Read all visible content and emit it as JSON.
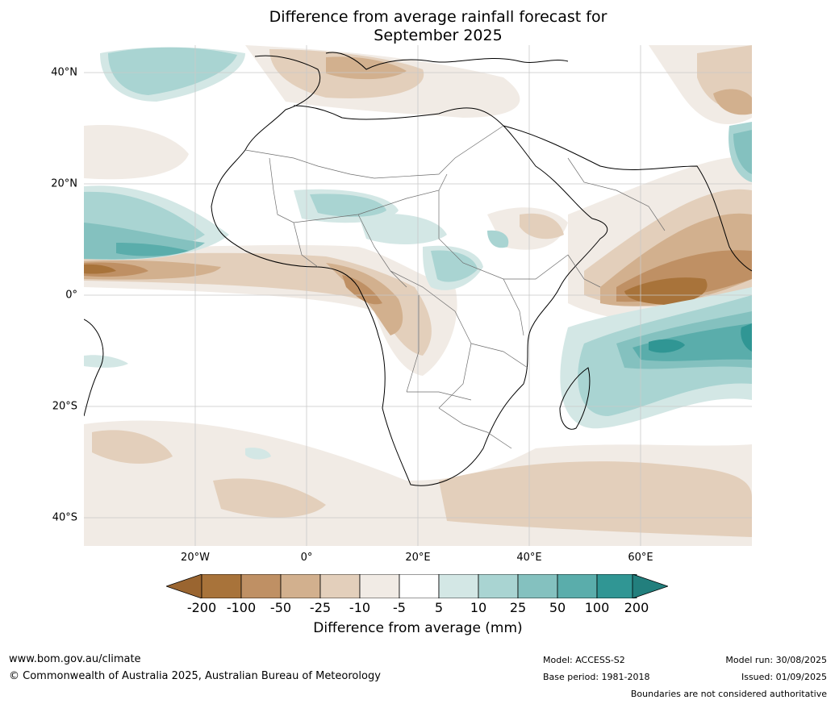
{
  "title": {
    "line1": "Difference from average rainfall forecast for",
    "line2": "September 2025"
  },
  "map": {
    "lat_labels": [
      "40°N",
      "20°N",
      "0°",
      "20°S",
      "40°S"
    ],
    "lon_labels": [
      "20°W",
      "0°",
      "20°E",
      "40°E",
      "60°E"
    ]
  },
  "legend": {
    "title": "Difference from average (mm)",
    "ticks": [
      "-200",
      "-100",
      "-50",
      "-25",
      "-10",
      "-5",
      "5",
      "10",
      "25",
      "50",
      "100",
      "200"
    ],
    "colors": [
      "#a8733a",
      "#bf9064",
      "#d2b08e",
      "#e3cfbb",
      "#f1ebe5",
      "#ffffff",
      "#d3e7e5",
      "#a9d4d2",
      "#84c1bf",
      "#5aadab",
      "#309694"
    ],
    "arrow_low_color": "#9a6530",
    "arrow_high_color": "#227f7d"
  },
  "footer": {
    "website": "www.bom.gov.au/climate",
    "copyright": "© Commonwealth of Australia 2025, Australian Bureau of Meteorology",
    "model": "Model: ACCESS-S2",
    "base_period": "Base period: 1981-2018",
    "model_run": "Model run: 30/08/2025",
    "issued": "Issued: 01/09/2025",
    "disclaimer": "Boundaries are not considered authoritative"
  }
}
